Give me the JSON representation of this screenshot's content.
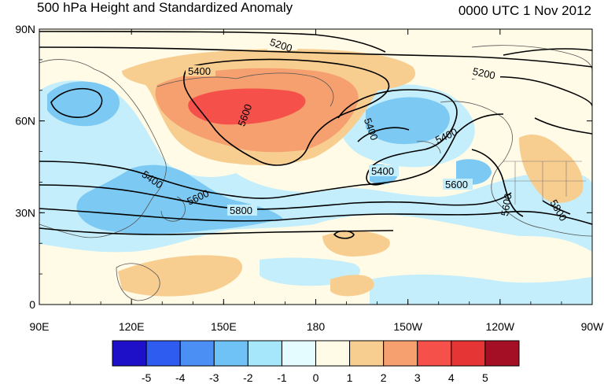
{
  "title": "500 hPa Height and Standardized Anomaly",
  "valid_time": "0000 UTC 1 Nov 2012",
  "lat_ticks": [
    {
      "label": "90N",
      "value": 90
    },
    {
      "label": "60N",
      "value": 60
    },
    {
      "label": "30N",
      "value": 30
    },
    {
      "label": "0",
      "value": 0
    }
  ],
  "lon_ticks": [
    {
      "label": "90E",
      "value": 90
    },
    {
      "label": "120E",
      "value": 120
    },
    {
      "label": "150E",
      "value": 150
    },
    {
      "label": "180",
      "value": 180
    },
    {
      "label": "150W",
      "value": 210
    },
    {
      "label": "120W",
      "value": 240
    },
    {
      "label": "90W",
      "value": 270
    }
  ],
  "contour_labels": [
    "5200",
    "5200",
    "5400",
    "5400",
    "5400",
    "5400",
    "5400",
    "5600",
    "5600",
    "5600",
    "5600",
    "5800",
    "5800"
  ],
  "colorbar": {
    "labels": [
      "-5",
      "-4",
      "-3",
      "-2",
      "-1",
      "0",
      "1",
      "2",
      "3",
      "4",
      "5"
    ],
    "colors": [
      "#1e10c8",
      "#2f5cf0",
      "#4b8ff5",
      "#6ec2f5",
      "#a7e7fb",
      "#e4fcff",
      "#fffbe6",
      "#f8cd90",
      "#f5a06e",
      "#f5504a",
      "#e53535",
      "#a50f26"
    ]
  }
}
